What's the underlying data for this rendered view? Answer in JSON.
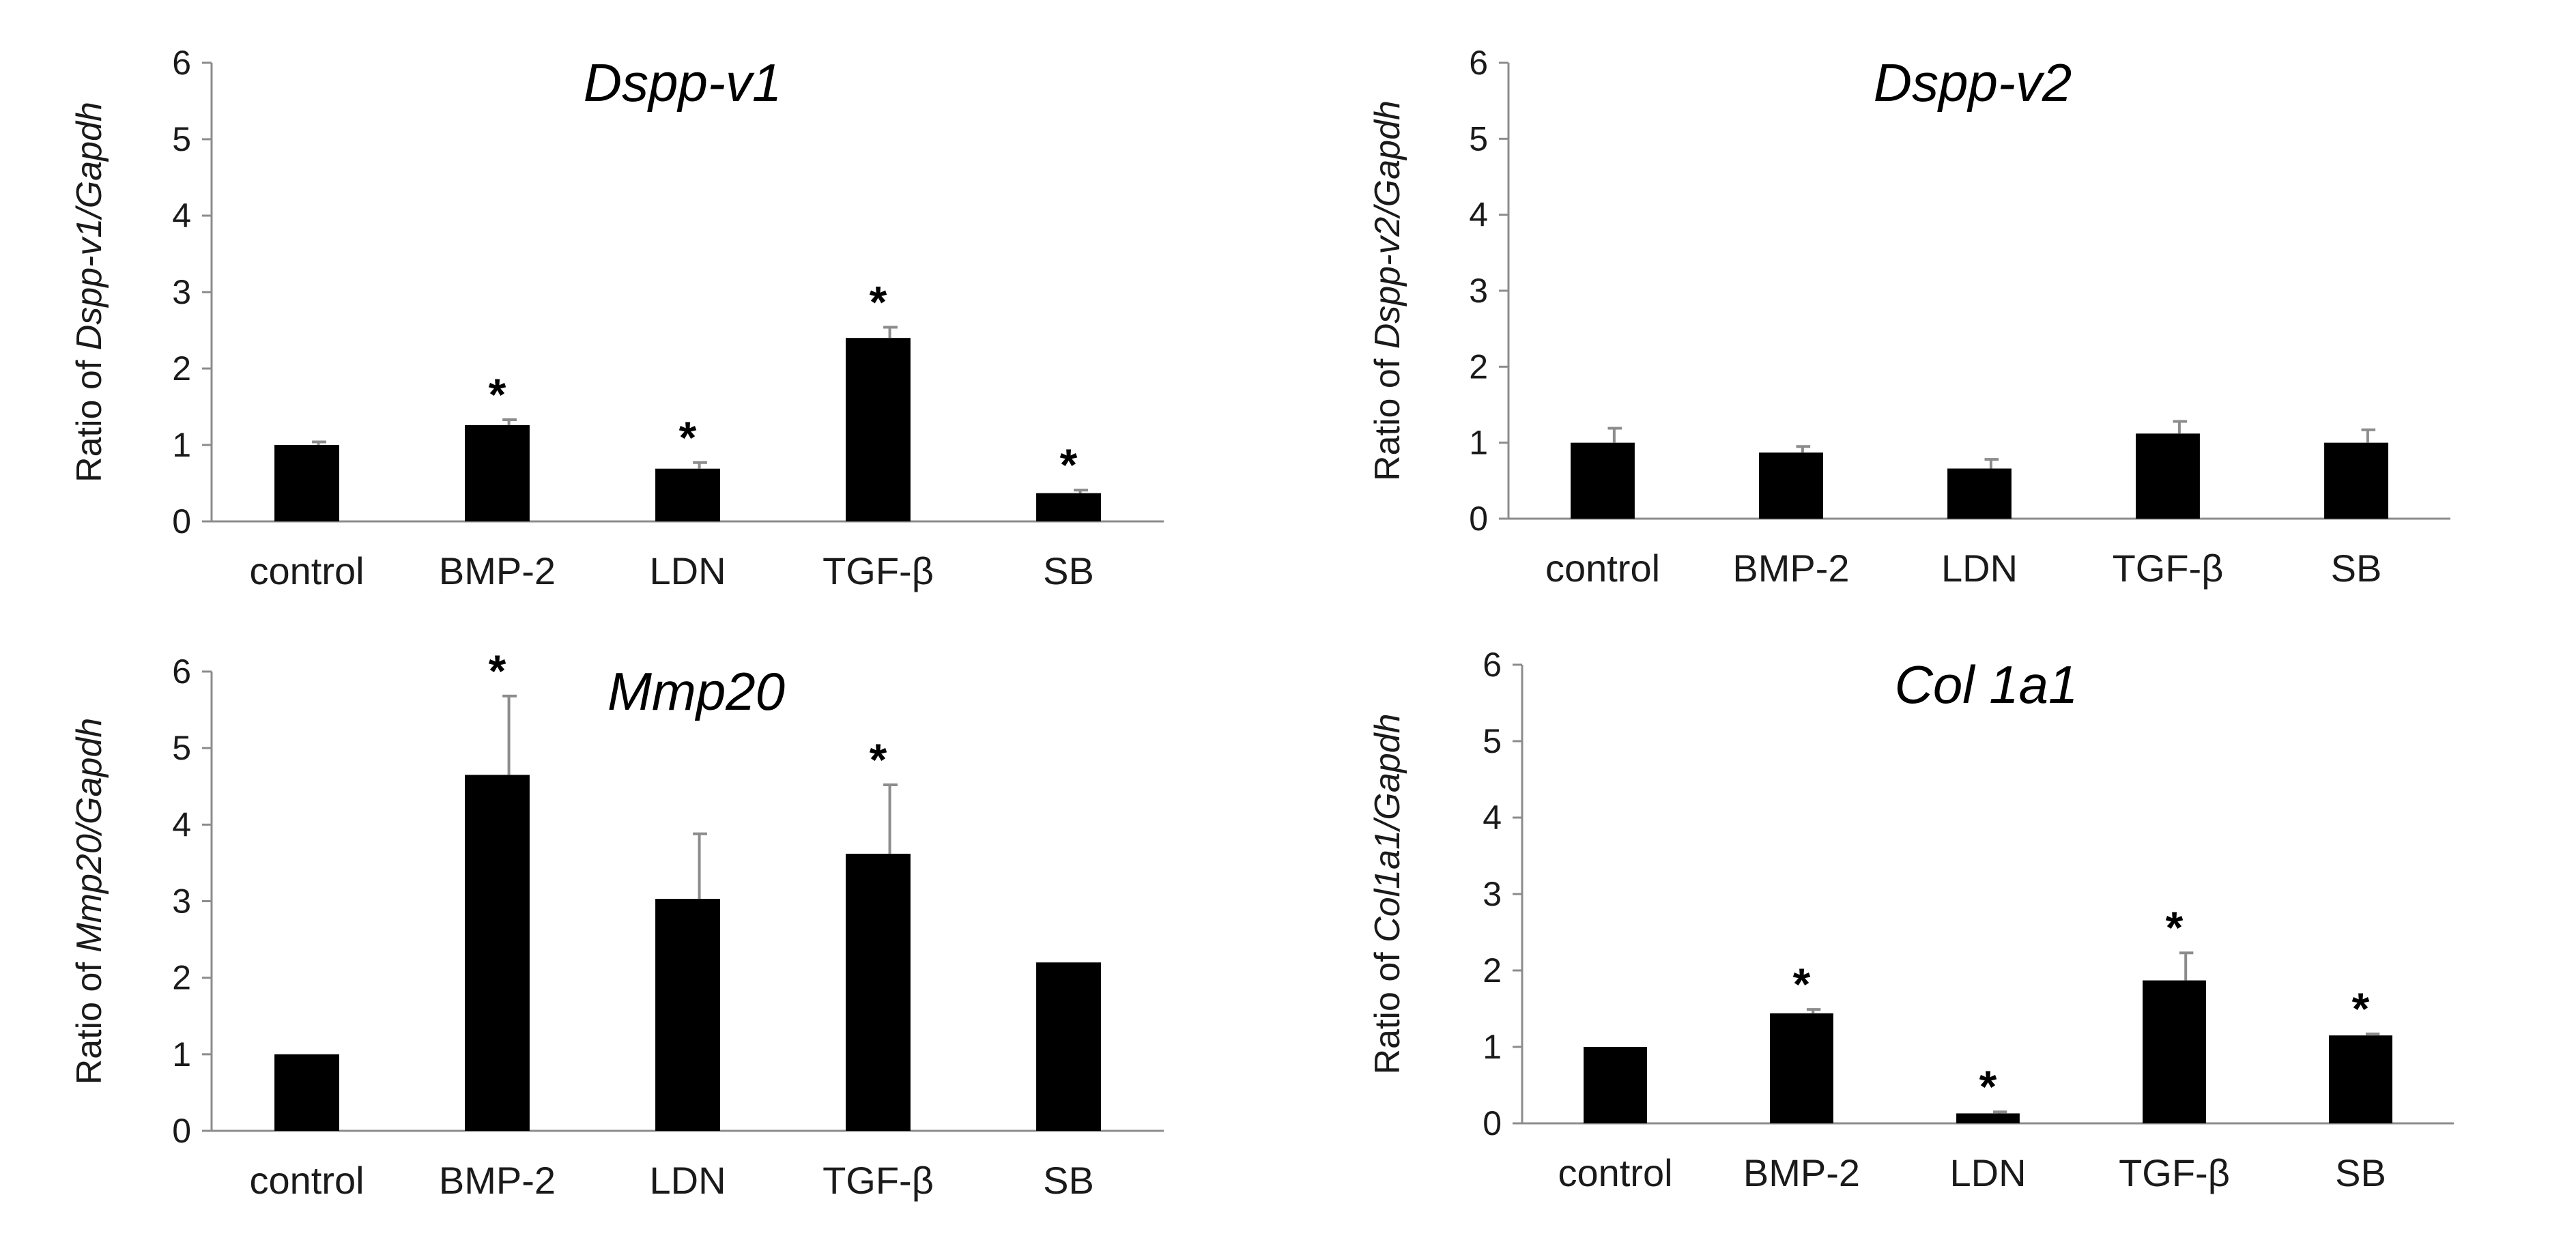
{
  "chart_data": [
    {
      "type": "bar",
      "title": "Dspp-v1",
      "ylabel_prefix": "Ratio of ",
      "ylabel_gene": "Dspp-v1/Gapdh",
      "categories": [
        "control",
        "BMP-2",
        "LDN",
        "TGF-β",
        "SB"
      ],
      "values": [
        1.0,
        1.26,
        0.69,
        2.4,
        0.37
      ],
      "errors": [
        0.04,
        0.07,
        0.08,
        0.14,
        0.04
      ],
      "significant": [
        false,
        true,
        true,
        true,
        true
      ],
      "significance_marker": "*",
      "ylim": [
        0,
        6
      ],
      "yticks": [
        "0",
        "1",
        "2",
        "3",
        "4",
        "5",
        "6"
      ]
    },
    {
      "type": "bar",
      "title": "Dspp-v2",
      "ylabel_prefix": "Ratio of ",
      "ylabel_gene": "Dspp-v2/Gapdh",
      "categories": [
        "control",
        "BMP-2",
        "LDN",
        "TGF-β",
        "SB"
      ],
      "values": [
        1.0,
        0.87,
        0.66,
        1.12,
        1.0
      ],
      "errors": [
        0.19,
        0.08,
        0.12,
        0.16,
        0.17
      ],
      "significant": [
        false,
        false,
        false,
        false,
        false
      ],
      "significance_marker": "*",
      "ylim": [
        0,
        6
      ],
      "yticks": [
        "0",
        "1",
        "2",
        "3",
        "4",
        "5",
        "6"
      ]
    },
    {
      "type": "bar",
      "title": "Mmp20",
      "ylabel_prefix": "Ratio of ",
      "ylabel_gene": "Mmp20/Gapdh",
      "categories": [
        "control",
        "BMP-2",
        "LDN",
        "TGF-β",
        "SB"
      ],
      "values": [
        1.0,
        4.65,
        3.03,
        3.62,
        2.2
      ],
      "errors": [
        0.01,
        1.03,
        0.85,
        0.9,
        0.01
      ],
      "significant": [
        false,
        true,
        false,
        true,
        false
      ],
      "significance_marker": "*",
      "ylim": [
        0,
        6
      ],
      "yticks": [
        "0",
        "1",
        "2",
        "3",
        "4",
        "5",
        "6"
      ]
    },
    {
      "type": "bar",
      "title": "Col 1a1",
      "ylabel_prefix": "Ratio of ",
      "ylabel_gene": "Col1a1/Gapdh",
      "categories": [
        "control",
        "BMP-2",
        "LDN",
        "TGF-β",
        "SB"
      ],
      "values": [
        1.0,
        1.44,
        0.13,
        1.87,
        1.15
      ],
      "errors": [
        0.01,
        0.05,
        0.02,
        0.36,
        0.02
      ],
      "significant": [
        false,
        true,
        true,
        true,
        true
      ],
      "significance_marker": "*",
      "ylim": [
        0,
        6
      ],
      "yticks": [
        "0",
        "1",
        "2",
        "3",
        "4",
        "5",
        "6"
      ]
    }
  ]
}
